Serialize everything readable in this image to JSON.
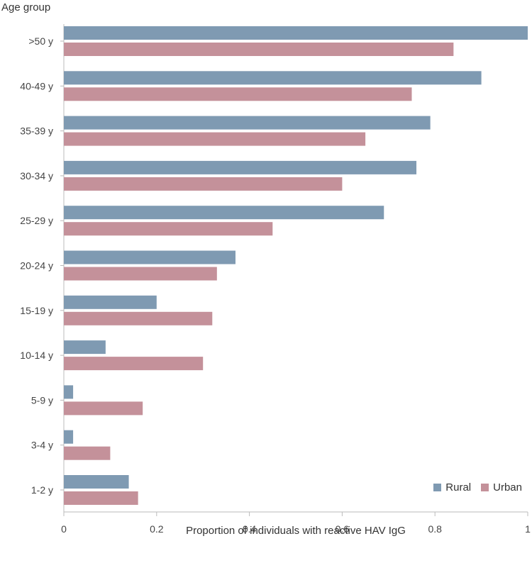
{
  "chart_data": {
    "type": "bar",
    "orientation": "horizontal",
    "title": "",
    "ylabel": "Age group",
    "xlabel": "Proportion of individuals with reactive HAV IgG",
    "xlim": [
      0,
      1
    ],
    "xticks": [
      "0",
      "0.2",
      "0.4",
      "0.6",
      "0.8",
      "1"
    ],
    "categories": [
      ">50 y",
      "40-49 y",
      "35-39 y",
      "30-34 y",
      "25-29 y",
      "20-24 y",
      "15-19 y",
      "10-14 y",
      "5-9 y",
      "3-4 y",
      "1-2 y"
    ],
    "series": [
      {
        "name": "Rural",
        "color": "#7f9ab2",
        "values": [
          1.0,
          0.9,
          0.79,
          0.76,
          0.69,
          0.37,
          0.2,
          0.09,
          0.02,
          0.02,
          0.14
        ]
      },
      {
        "name": "Urban",
        "color": "#c4919a",
        "values": [
          0.84,
          0.75,
          0.65,
          0.6,
          0.45,
          0.33,
          0.32,
          0.3,
          0.17,
          0.1,
          0.16
        ]
      }
    ],
    "legend_position": "bottom-right",
    "grid": false
  }
}
